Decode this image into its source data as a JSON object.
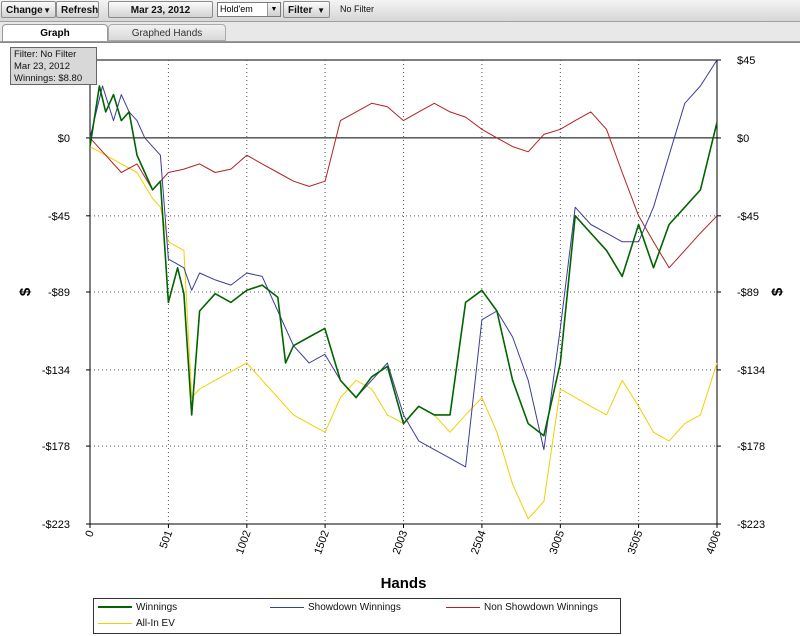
{
  "toolbar": {
    "change_label": "Change",
    "refresh_label": "Refresh",
    "date_label": "Mar 23, 2012",
    "game_select": "Hold'em",
    "filter_label": "Filter",
    "filter_status": "No Filter"
  },
  "tabs": [
    {
      "label": "Graph",
      "active": true
    },
    {
      "label": "Graphed Hands",
      "active": false
    }
  ],
  "infobox": {
    "line1": "Filter: No Filter",
    "line2": "Mar 23, 2012",
    "line3": "Winnings: $8.80"
  },
  "chart_data": {
    "type": "line",
    "title": "",
    "xlabel": "Hands",
    "ylabel": "$",
    "xlim": [
      0,
      4006
    ],
    "ylim": [
      -223,
      45
    ],
    "x_ticks": [
      0,
      501,
      1002,
      1502,
      2003,
      2504,
      3005,
      3505,
      4006
    ],
    "y_ticks": [
      45,
      0,
      -45,
      -89,
      -134,
      -178,
      -223
    ],
    "y_tick_labels": [
      "$45",
      "$0",
      "-$45",
      "-$89",
      "-$134",
      "-$178",
      "-$223"
    ],
    "grid": true,
    "zero_line": true,
    "legend_position": "bottom",
    "series": [
      {
        "name": "Winnings",
        "color": "#006400",
        "x": [
          0,
          60,
          100,
          150,
          200,
          250,
          300,
          350,
          400,
          450,
          501,
          560,
          600,
          650,
          700,
          800,
          900,
          1002,
          1100,
          1200,
          1250,
          1300,
          1400,
          1500,
          1600,
          1700,
          1800,
          1900,
          2003,
          2100,
          2200,
          2300,
          2400,
          2504,
          2600,
          2700,
          2800,
          2900,
          3005,
          3100,
          3200,
          3300,
          3400,
          3505,
          3600,
          3700,
          3800,
          3900,
          4006
        ],
        "y": [
          -5,
          30,
          15,
          25,
          10,
          15,
          -10,
          -20,
          -30,
          -25,
          -95,
          -75,
          -90,
          -160,
          -100,
          -90,
          -95,
          -88,
          -85,
          -92,
          -130,
          -120,
          -115,
          -110,
          -140,
          -150,
          -138,
          -132,
          -165,
          -155,
          -160,
          -160,
          -95,
          -88,
          -100,
          -140,
          -165,
          -172,
          -130,
          -45,
          -55,
          -65,
          -80,
          -50,
          -75,
          -50,
          -40,
          -30,
          9
        ]
      },
      {
        "name": "Showdown Winnings",
        "color": "#3c3c9a",
        "x": [
          0,
          80,
          150,
          200,
          250,
          300,
          350,
          400,
          450,
          501,
          600,
          650,
          700,
          800,
          900,
          1002,
          1100,
          1200,
          1300,
          1400,
          1500,
          1600,
          1700,
          1800,
          1900,
          2003,
          2100,
          2200,
          2300,
          2400,
          2504,
          2600,
          2700,
          2800,
          2900,
          3005,
          3100,
          3200,
          3300,
          3400,
          3505,
          3600,
          3700,
          3800,
          3900,
          4006
        ],
        "y": [
          0,
          30,
          10,
          25,
          15,
          10,
          0,
          -5,
          -10,
          -70,
          -75,
          -88,
          -78,
          -82,
          -85,
          -78,
          -80,
          -100,
          -120,
          -130,
          -125,
          -140,
          -150,
          -140,
          -130,
          -160,
          -175,
          -180,
          -185,
          -190,
          -105,
          -100,
          -115,
          -140,
          -180,
          -110,
          -40,
          -50,
          -55,
          -60,
          -60,
          -40,
          -10,
          20,
          30,
          45
        ]
      },
      {
        "name": "Non Showdown Winnings",
        "color": "#b22222",
        "x": [
          0,
          100,
          200,
          300,
          400,
          501,
          600,
          700,
          800,
          900,
          1002,
          1100,
          1200,
          1300,
          1400,
          1502,
          1600,
          1700,
          1800,
          1900,
          2003,
          2100,
          2200,
          2300,
          2400,
          2504,
          2600,
          2700,
          2800,
          2900,
          3005,
          3100,
          3200,
          3300,
          3400,
          3505,
          3600,
          3700,
          3800,
          3900,
          4006
        ],
        "y": [
          0,
          -10,
          -20,
          -15,
          -30,
          -20,
          -18,
          -15,
          -20,
          -18,
          -10,
          -15,
          -20,
          -25,
          -28,
          -25,
          10,
          15,
          20,
          18,
          10,
          15,
          20,
          15,
          12,
          5,
          0,
          -5,
          -8,
          2,
          5,
          10,
          15,
          5,
          -20,
          -45,
          -60,
          -75,
          -65,
          -55,
          -45
        ]
      },
      {
        "name": "All-In EV",
        "color": "#f0d000",
        "x": [
          0,
          100,
          200,
          300,
          400,
          450,
          501,
          600,
          650,
          700,
          800,
          900,
          1002,
          1100,
          1200,
          1300,
          1400,
          1502,
          1600,
          1700,
          1800,
          1900,
          2003,
          2100,
          2200,
          2300,
          2400,
          2504,
          2600,
          2700,
          2800,
          2900,
          3005,
          3100,
          3200,
          3300,
          3400,
          3505,
          3600,
          3700,
          3800,
          3900,
          4006
        ],
        "y": [
          -5,
          -10,
          -15,
          -20,
          -35,
          -40,
          -60,
          -65,
          -150,
          -145,
          -140,
          -135,
          -130,
          -140,
          -150,
          -160,
          -165,
          -170,
          -150,
          -140,
          -145,
          -160,
          -165,
          -155,
          -160,
          -170,
          -160,
          -150,
          -170,
          -200,
          -220,
          -210,
          -145,
          -150,
          -155,
          -160,
          -140,
          -155,
          -170,
          -175,
          -165,
          -160,
          -130
        ]
      }
    ]
  }
}
